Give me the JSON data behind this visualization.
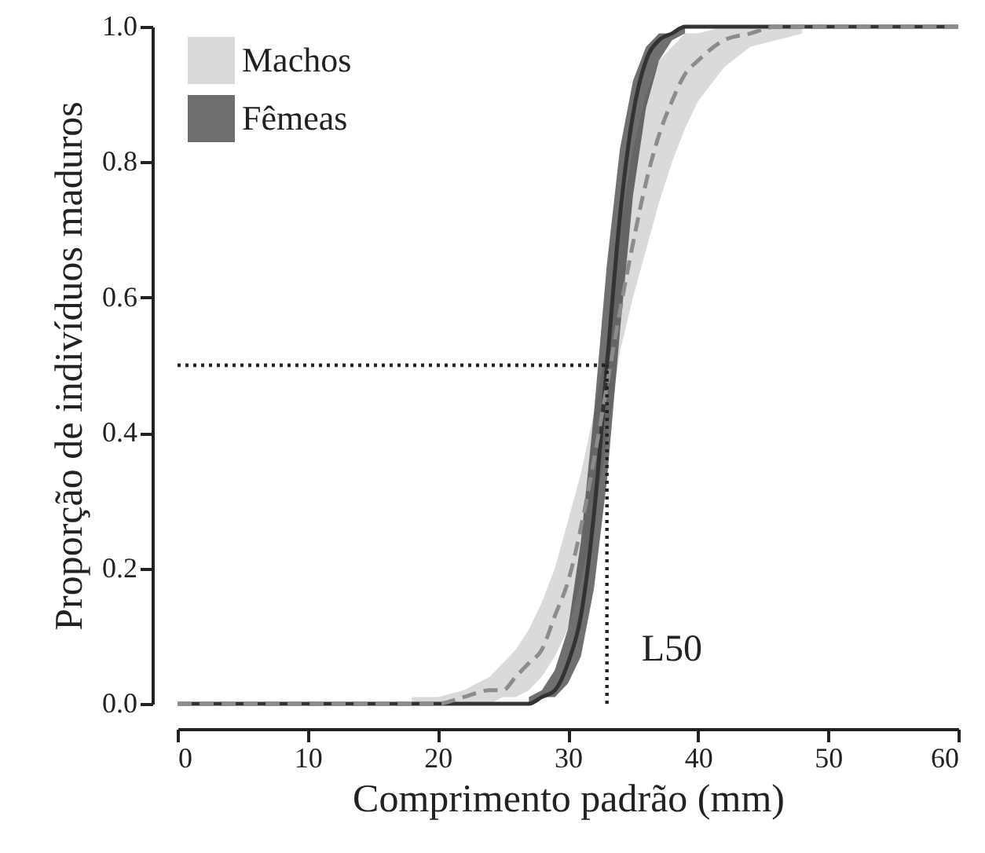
{
  "chart_data": {
    "type": "line",
    "xlabel": "Comprimento padrão (mm)",
    "ylabel": "Proporção de indivíduos maduros",
    "xlim": [
      0,
      60
    ],
    "xticks": [
      0,
      10,
      20,
      30,
      40,
      50,
      60
    ],
    "ylim": [
      0,
      1
    ],
    "yticks": [
      {
        "value": 0,
        "label": "0.0"
      },
      {
        "value": 0.2,
        "label": "0.2"
      },
      {
        "value": 0.4,
        "label": "0.4"
      },
      {
        "value": 0.6,
        "label": "0.6"
      },
      {
        "value": 0.8,
        "label": "0.8"
      },
      {
        "value": 1,
        "label": "1.0"
      }
    ],
    "grid": false,
    "legend": "top left",
    "marker": "none",
    "series": [
      {
        "name": "Machos",
        "color": "#8c8c8c",
        "line_style": "dashed",
        "x": [
          0,
          5,
          10,
          15,
          18,
          20,
          22,
          24,
          25,
          26,
          27,
          28,
          29,
          30,
          31,
          32,
          33,
          34,
          35,
          36,
          37,
          38,
          39,
          40,
          42,
          44,
          46,
          48,
          50,
          52,
          55,
          60
        ],
        "values": [
          0,
          0,
          0,
          0,
          0,
          0,
          0.01,
          0.02,
          0.02,
          0.04,
          0.06,
          0.08,
          0.13,
          0.18,
          0.26,
          0.36,
          0.47,
          0.58,
          0.68,
          0.77,
          0.84,
          0.89,
          0.93,
          0.95,
          0.98,
          0.99,
          1,
          1,
          1,
          1,
          1,
          1
        ],
        "lower": [
          null,
          null,
          null,
          null,
          0,
          0,
          0,
          0,
          0.01,
          0.01,
          0.02,
          0.04,
          0.07,
          0.11,
          0.18,
          0.27,
          0.39,
          0.52,
          0.6,
          0.67,
          0.74,
          0.8,
          0.85,
          0.89,
          0.94,
          0.97,
          0.98,
          0.99,
          null,
          null,
          null,
          null
        ],
        "upper": [
          null,
          null,
          null,
          null,
          0.01,
          0.01,
          0.02,
          0.04,
          0.06,
          0.08,
          0.11,
          0.15,
          0.2,
          0.27,
          0.34,
          0.43,
          0.53,
          0.7,
          0.82,
          0.9,
          0.95,
          0.97,
          0.99,
          0.99,
          1,
          1,
          1,
          1,
          null,
          null,
          null,
          null
        ]
      },
      {
        "name": "Fêmeas",
        "color": "#333333",
        "line_style": "solid",
        "x": [
          0,
          5,
          10,
          15,
          20,
          25,
          26,
          27,
          28,
          29,
          30,
          31,
          32,
          33,
          34,
          35,
          36,
          37,
          38,
          39,
          40,
          42,
          45,
          50,
          55,
          60
        ],
        "values": [
          0,
          0,
          0,
          0,
          0,
          0,
          0,
          0,
          0.01,
          0.02,
          0.06,
          0.13,
          0.28,
          0.5,
          0.72,
          0.87,
          0.95,
          0.98,
          0.99,
          1,
          1,
          1,
          1,
          1,
          1,
          1
        ],
        "lower": [
          null,
          null,
          null,
          null,
          null,
          null,
          null,
          0,
          0.01,
          0.01,
          0.03,
          0.07,
          0.17,
          0.33,
          0.55,
          0.75,
          0.88,
          0.95,
          0.98,
          0.99,
          null,
          null,
          null,
          null,
          null,
          null
        ],
        "upper": [
          null,
          null,
          null,
          null,
          null,
          null,
          null,
          0.01,
          0.02,
          0.05,
          0.11,
          0.24,
          0.43,
          0.65,
          0.82,
          0.92,
          0.97,
          0.99,
          0.99,
          1,
          null,
          null,
          null,
          null,
          null,
          null
        ]
      }
    ],
    "ref_lines": [
      {
        "axis": "y",
        "value": 0.5,
        "line_style": "dotted"
      },
      {
        "axis": "x",
        "value": 33,
        "label": "L50",
        "line_style": "dotted"
      }
    ]
  }
}
